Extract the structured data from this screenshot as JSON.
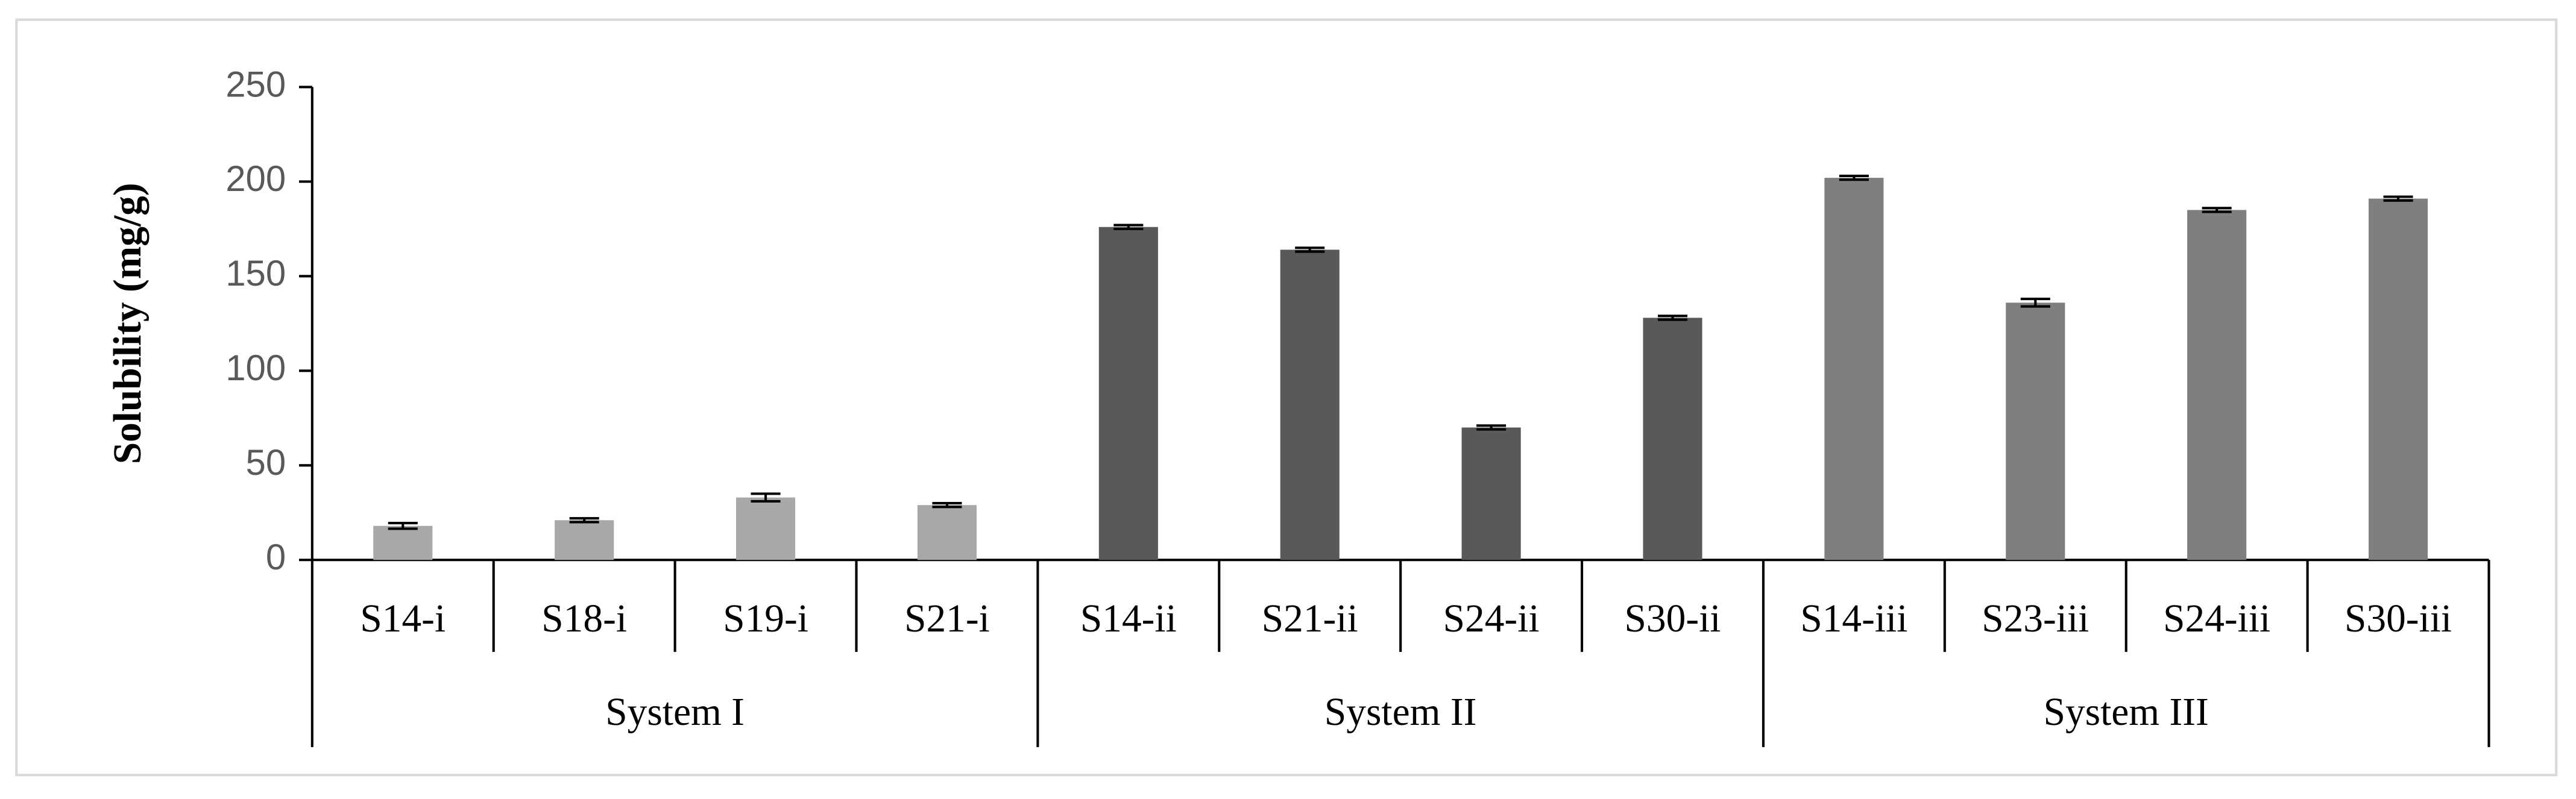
{
  "chart_data": {
    "type": "bar",
    "y_label": "Solubility (mg/g)",
    "ylim": [
      0,
      250
    ],
    "yticks": [
      0,
      50,
      100,
      150,
      200,
      250
    ],
    "groups": [
      {
        "name": "System I",
        "color": "#aaa7a7",
        "categories": [
          "S14-i",
          "S18-i",
          "S19-i",
          "S21-i"
        ],
        "values": [
          18,
          21,
          33,
          29
        ],
        "errors": [
          1.5,
          1,
          2,
          1
        ]
      },
      {
        "name": "System II",
        "color": "#595959",
        "categories": [
          "S14-ii",
          "S21-ii",
          "S24-ii",
          "S30-ii"
        ],
        "values": [
          176,
          164,
          70,
          128
        ],
        "errors": [
          1,
          1,
          1,
          1
        ]
      },
      {
        "name": "System III",
        "color": "#7f7f7f",
        "categories": [
          "S14-iii",
          "S23-iii",
          "S24-iii",
          "S30-iii"
        ],
        "values": [
          202,
          136,
          185,
          191
        ],
        "errors": [
          1,
          2,
          1,
          1
        ]
      }
    ]
  }
}
